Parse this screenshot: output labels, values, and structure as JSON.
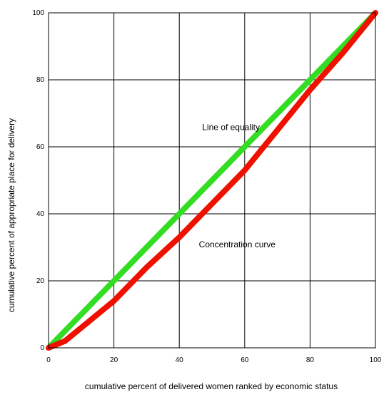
{
  "chart_data": {
    "type": "line",
    "title": "",
    "xlabel": "cumulative percent of delivered women ranked by economic status",
    "ylabel": "cumulative percent of appropriate place for delivery",
    "xlim": [
      0,
      100
    ],
    "ylim": [
      0,
      100
    ],
    "xticks": [
      0,
      20,
      40,
      60,
      80,
      100
    ],
    "yticks": [
      0,
      20,
      40,
      60,
      80,
      100
    ],
    "grid": true,
    "legend": "none",
    "annotations": [
      {
        "text": "Line of equality",
        "x": 47,
        "y": 65
      },
      {
        "text": "Concentration curve",
        "x": 46,
        "y": 30
      }
    ],
    "series": [
      {
        "color": "#33dd22",
        "x": [
          0,
          20,
          40,
          60,
          80,
          100
        ],
        "y": [
          0,
          20,
          40,
          60,
          80,
          100
        ]
      },
      {
        "color": "#ee1100",
        "x": [
          0,
          5,
          10,
          20,
          30,
          40,
          50,
          60,
          70,
          80,
          90,
          100
        ],
        "y": [
          0,
          2,
          6,
          14,
          24,
          33,
          43,
          53,
          65,
          77,
          88,
          100
        ]
      }
    ]
  }
}
